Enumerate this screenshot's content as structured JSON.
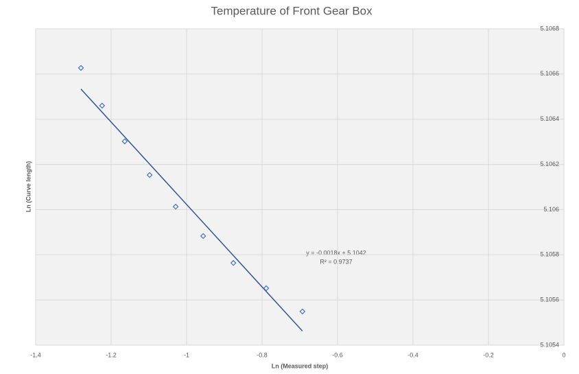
{
  "chart_data": {
    "type": "scatter",
    "title": "Temperature of Front Gear Box",
    "x_label": "Ln (Measured step)",
    "y_label": "Ln (Curve length)",
    "x": [
      -1.28,
      -1.224,
      -1.164,
      -1.098,
      -1.029,
      -0.956,
      -0.876,
      -0.789,
      -0.693
    ],
    "values": [
      5.106627,
      5.10646,
      5.106302,
      5.106153,
      5.106013,
      5.105883,
      5.105764,
      5.105652,
      5.105549
    ],
    "color": "#4472c4",
    "trendline_color": "#2f5597",
    "annotations": [
      "y = -0.0018x + 5.1042",
      "R² = 0.9737"
    ],
    "xlim": [
      -1.4,
      0
    ],
    "xticks": [
      -1.4,
      -1.2,
      -1,
      -0.8,
      -0.6,
      -0.4,
      -0.2,
      0
    ],
    "ylim": [
      5.1054,
      5.1068
    ],
    "yticks": [
      5.1054,
      5.1056,
      5.1058,
      5.106,
      5.1062,
      5.1064,
      5.1066,
      5.1068
    ],
    "grid": true
  }
}
